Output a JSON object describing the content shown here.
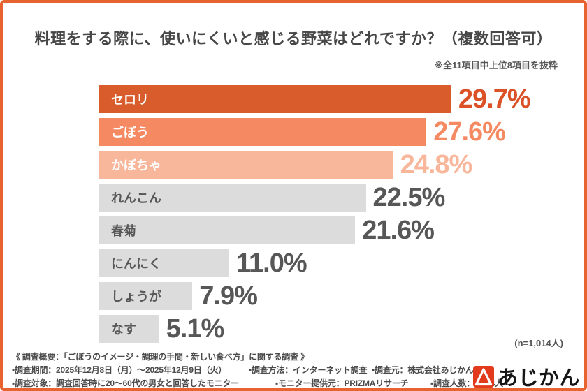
{
  "page": {
    "background": "#ffffff",
    "border_color": "#e7632f"
  },
  "header": {
    "title": "料理をする際に、使いにくいと感じる野菜はどれですか？（複数回答可）",
    "note": "※全11項目中上位8項目を抜粋"
  },
  "chart_data": {
    "type": "bar",
    "orientation": "horizontal",
    "title": "料理をする際に、使いにくいと感じる野菜はどれですか？（複数回答可）",
    "categories": [
      "セロリ",
      "ごぼう",
      "かぼちゃ",
      "れんこん",
      "春菊",
      "にんにく",
      "しょうが",
      "なす"
    ],
    "values": [
      29.7,
      27.6,
      24.8,
      22.5,
      21.6,
      11.0,
      7.9,
      5.1
    ],
    "value_labels": [
      "29.7%",
      "27.6%",
      "24.8%",
      "22.5%",
      "21.6%",
      "11.0%",
      "7.9%",
      "5.1%"
    ],
    "bar_colors": [
      "#d85c2c",
      "#f58a62",
      "#f8b69a",
      "#dcdcdc",
      "#dcdcdc",
      "#dcdcdc",
      "#dcdcdc",
      "#dcdcdc"
    ],
    "category_label_colors": [
      "#ffffff",
      "#ffffff",
      "#ffffff",
      "#575757",
      "#575757",
      "#575757",
      "#575757",
      "#575757"
    ],
    "value_label_colors": [
      "#da5226",
      "#f58a62",
      "#f8b69a",
      "#575757",
      "#575757",
      "#575757",
      "#575757",
      "#575757"
    ],
    "xlim": [
      0,
      33
    ],
    "grid": false,
    "legend": false,
    "sample_note": "(n=1,014人)"
  },
  "footer": {
    "overview": "《 調査概要：「ごぼうのイメージ・調理の手間・新しい食べ方」に関する調査 》",
    "items_row1": [
      "▪調査期間：2025年12月8日（月）～2025年12月9日（火）",
      "▪調査方法：インターネット調査",
      "▪調査元：株式会社あじかん"
    ],
    "items_row2": [
      "▪調査対象：調査回答時に20～60代の男女と回答したモニター",
      "▪モニター提供元：PRIZMAリサーチ",
      "▪調査人数：1,014人"
    ],
    "logo": {
      "text": "あじかん",
      "icon": "triangle-in-square",
      "color": "#e23a1d"
    }
  }
}
